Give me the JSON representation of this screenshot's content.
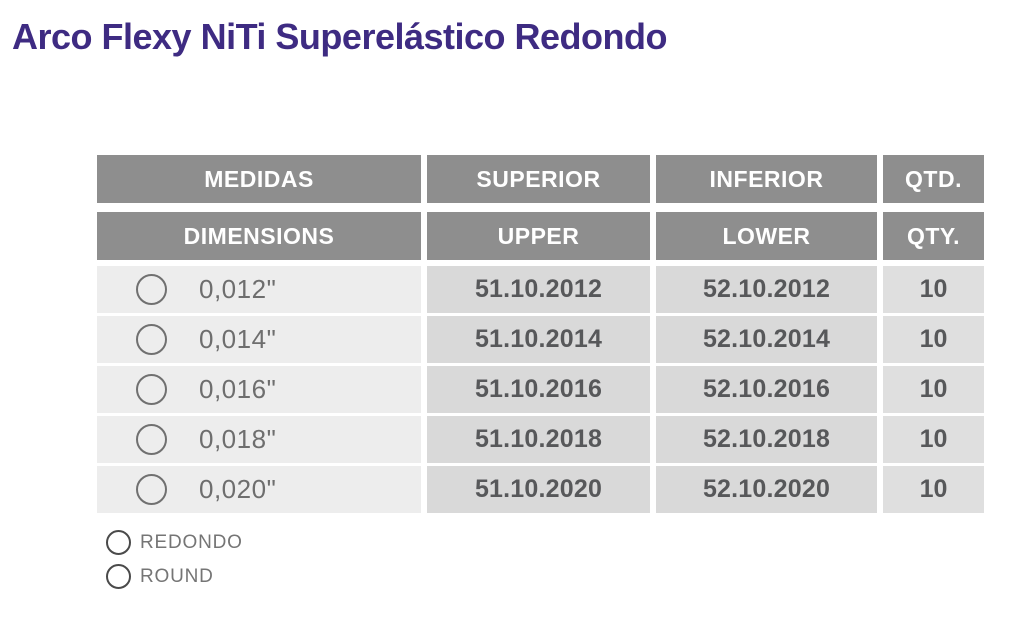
{
  "title": "Arco Flexy NiTi Superelástico Redondo",
  "table": {
    "header_row_pt": [
      "MEDIDAS",
      "SUPERIOR",
      "INFERIOR",
      "QTD."
    ],
    "header_row_en": [
      "DIMENSIONS",
      "UPPER",
      "LOWER",
      "QTY."
    ],
    "rows": [
      {
        "dimension": "0,012\"",
        "upper": "51.10.2012",
        "lower": "52.10.2012",
        "qty": "10"
      },
      {
        "dimension": "0,014\"",
        "upper": "51.10.2014",
        "lower": "52.10.2014",
        "qty": "10"
      },
      {
        "dimension": "0,016\"",
        "upper": "51.10.2016",
        "lower": "52.10.2016",
        "qty": "10"
      },
      {
        "dimension": "0,018\"",
        "upper": "51.10.2018",
        "lower": "52.10.2018",
        "qty": "10"
      },
      {
        "dimension": "0,020\"",
        "upper": "51.10.2020",
        "lower": "52.10.2020",
        "qty": "10"
      }
    ]
  },
  "legend": {
    "items": [
      {
        "icon": "round-icon",
        "label": "REDONDO"
      },
      {
        "icon": "round-icon",
        "label": "ROUND"
      }
    ]
  },
  "colors": {
    "title_purple": "#3e2b82",
    "header_gray": "#8e8e8e",
    "dimension_cell_bg": "#ededed",
    "code_cell_bg": "#d9d9d9",
    "qty_cell_bg": "#dfdfdf",
    "code_text": "#57585a",
    "dimension_text": "#6e6e6e",
    "legend_text": "#757575"
  }
}
